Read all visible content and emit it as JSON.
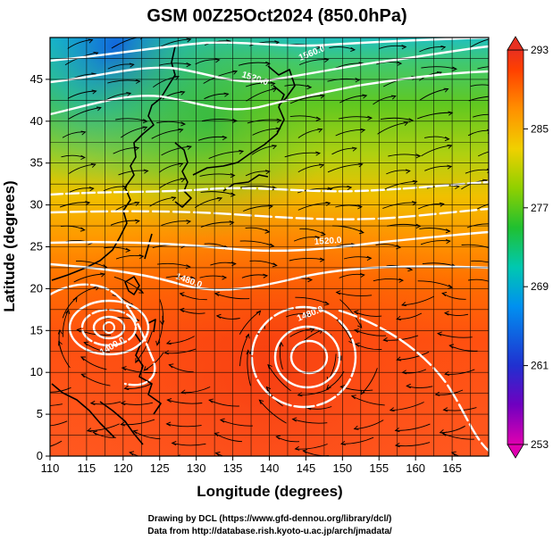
{
  "title": "GSM 00Z25Oct2024 (850.0hPa)",
  "x_axis": {
    "label": "Longitude (degrees)",
    "ticks": [
      "110",
      "115",
      "120",
      "125",
      "130",
      "135",
      "140",
      "145",
      "150",
      "155",
      "160",
      "165"
    ],
    "range": [
      110,
      170
    ]
  },
  "y_axis": {
    "label": "Latitude  (degrees)",
    "ticks": [
      "0",
      "5",
      "10",
      "15",
      "20",
      "25",
      "30",
      "35",
      "40",
      "45"
    ],
    "range": [
      0,
      50
    ]
  },
  "colorbar": {
    "ticks": [
      "293",
      "285",
      "277",
      "269",
      "261",
      "253"
    ],
    "range": [
      253,
      293
    ],
    "colors": [
      "#e000b0",
      "#5000c0",
      "#1030d0",
      "#00a0f0",
      "#00d0a0",
      "#30c000",
      "#a0d000",
      "#f0d000",
      "#ff9000",
      "#ff4000",
      "#e83020"
    ]
  },
  "contour_labels": [
    "1560.0",
    "1520.0",
    "1520.0",
    "1480.0",
    "1480.0",
    "1400.0"
  ],
  "credits": {
    "line1": "Drawing by DCL (https://www.gfd-dennou.org/library/dcl/)",
    "line2": "Data from http://database.rish.kyoto-u.ac.jp/arch/jmadata/"
  },
  "colors": {
    "frame": "#000000",
    "contour": "#ffffff",
    "coast": "#000000"
  }
}
